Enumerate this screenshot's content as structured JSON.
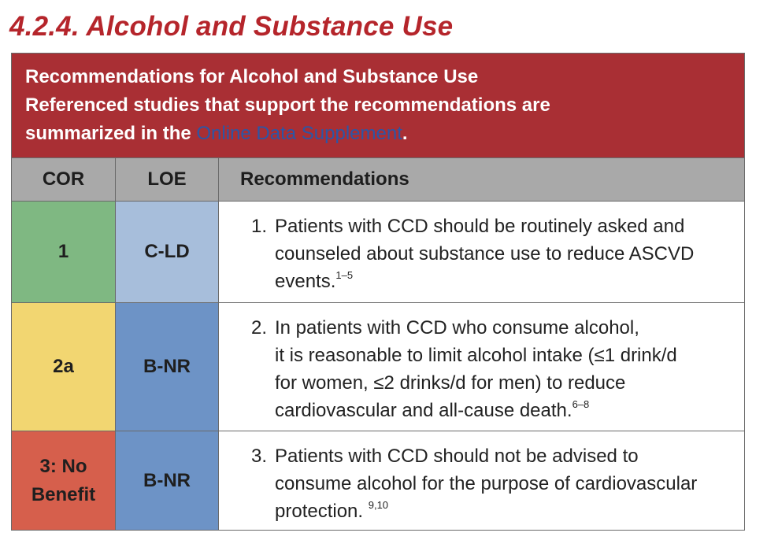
{
  "section_title": "4.2.4. Alcohol and Substance Use",
  "banner": {
    "line1": "Recommendations for Alcohol and Substance Use",
    "line2": "Referenced studies that support the recommendations are",
    "line3_prefix": "summarized in the ",
    "link_text": "Online Data Supplement",
    "line3_suffix": "."
  },
  "headers": {
    "cor": "COR",
    "loe": "LOE",
    "recommendations": "Recommendations"
  },
  "colors": {
    "title": "#b5252b",
    "banner_bg": "#a92f34",
    "header_bg": "#a9a9a9",
    "link": "#2b56a6"
  },
  "rows": [
    {
      "cor": "1",
      "cor_color": "#7fb882",
      "loe": "C-LD",
      "loe_color": "#a7bedb",
      "number": "1.",
      "lines": [
        "Patients with CCD should be routinely asked and",
        "counseled about substance use to reduce ASCVD",
        "events."
      ],
      "ref": "1–5"
    },
    {
      "cor": "2a",
      "cor_color": "#f2d671",
      "loe": "B-NR",
      "loe_color": "#6d93c6",
      "number": "2.",
      "lines": [
        "In patients with CCD who consume alcohol,",
        "it is reasonable to limit alcohol intake (≤1 drink/d",
        "for women, ≤2 drinks/d for men) to reduce",
        "cardiovascular and all-cause death."
      ],
      "ref": "6–8"
    },
    {
      "cor_line1": "3: No",
      "cor_line2": "Benefit",
      "cor_color": "#d65f4c",
      "loe": "B-NR",
      "loe_color": "#6d93c6",
      "number": "3.",
      "lines": [
        "Patients with CCD should not be advised to",
        "consume alcohol for the purpose of cardiovascular",
        "protection. "
      ],
      "ref": "9,10"
    }
  ]
}
